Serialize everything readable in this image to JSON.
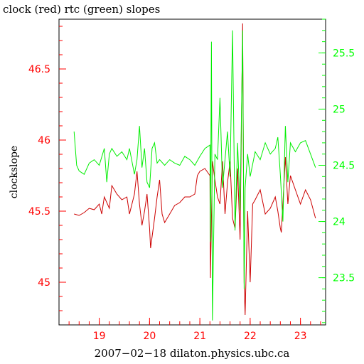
{
  "chart_data": {
    "type": "line",
    "title": "clock (red) rtc (green) slopes",
    "xlabel": "2007−02−18 dilaton.physics.ubc.ca",
    "ylabel": "clockslope",
    "y2label": "",
    "xlim": [
      18.2,
      23.5
    ],
    "ylim": [
      44.7,
      46.85
    ],
    "y2lim": [
      23.08,
      25.8
    ],
    "x_ticks": [
      "19",
      "20",
      "21",
      "22",
      "23"
    ],
    "y_ticks": [
      "45",
      "45.5",
      "46",
      "46.5"
    ],
    "y2_ticks": [
      "23.5",
      "24",
      "24.5",
      "25",
      "25.5"
    ],
    "grid": false,
    "colors": {
      "clock": "#cc0000",
      "rtc": "#00ee00",
      "axis_left": "#ff0000",
      "axis_right": "#00ff00"
    },
    "series": [
      {
        "name": "clock",
        "axis": "left",
        "points": [
          [
            18.5,
            45.48
          ],
          [
            18.6,
            45.47
          ],
          [
            18.7,
            45.49
          ],
          [
            18.8,
            45.52
          ],
          [
            18.9,
            45.51
          ],
          [
            19.0,
            45.55
          ],
          [
            19.05,
            45.48
          ],
          [
            19.1,
            45.6
          ],
          [
            19.2,
            45.52
          ],
          [
            19.25,
            45.68
          ],
          [
            19.35,
            45.62
          ],
          [
            19.45,
            45.58
          ],
          [
            19.55,
            45.6
          ],
          [
            19.6,
            45.48
          ],
          [
            19.7,
            45.62
          ],
          [
            19.75,
            45.78
          ],
          [
            19.8,
            45.55
          ],
          [
            19.85,
            45.4
          ],
          [
            19.9,
            45.5
          ],
          [
            19.95,
            45.62
          ],
          [
            20.0,
            45.38
          ],
          [
            20.02,
            45.24
          ],
          [
            20.1,
            45.45
          ],
          [
            20.15,
            45.6
          ],
          [
            20.2,
            45.72
          ],
          [
            20.25,
            45.48
          ],
          [
            20.3,
            45.42
          ],
          [
            20.4,
            45.48
          ],
          [
            20.5,
            45.54
          ],
          [
            20.6,
            45.56
          ],
          [
            20.7,
            45.6
          ],
          [
            20.8,
            45.6
          ],
          [
            20.9,
            45.62
          ],
          [
            20.95,
            45.75
          ],
          [
            21.0,
            45.78
          ],
          [
            21.1,
            45.8
          ],
          [
            21.2,
            45.75
          ],
          [
            21.21,
            45.03
          ],
          [
            21.25,
            45.85
          ],
          [
            21.3,
            45.72
          ],
          [
            21.35,
            45.6
          ],
          [
            21.4,
            45.55
          ],
          [
            21.45,
            45.85
          ],
          [
            21.5,
            45.48
          ],
          [
            21.55,
            45.7
          ],
          [
            21.6,
            45.85
          ],
          [
            21.65,
            45.45
          ],
          [
            21.7,
            45.38
          ],
          [
            21.75,
            45.8
          ],
          [
            21.8,
            45.3
          ],
          [
            21.85,
            46.82
          ],
          [
            21.88,
            45.0
          ],
          [
            21.9,
            44.77
          ],
          [
            21.95,
            45.5
          ],
          [
            22.0,
            45.0
          ],
          [
            22.05,
            45.55
          ],
          [
            22.1,
            45.58
          ],
          [
            22.2,
            45.65
          ],
          [
            22.3,
            45.48
          ],
          [
            22.4,
            45.52
          ],
          [
            22.5,
            45.6
          ],
          [
            22.55,
            45.5
          ],
          [
            22.6,
            45.38
          ],
          [
            22.62,
            45.35
          ],
          [
            22.7,
            45.88
          ],
          [
            22.75,
            45.55
          ],
          [
            22.8,
            45.75
          ],
          [
            22.9,
            45.65
          ],
          [
            23.0,
            45.55
          ],
          [
            23.1,
            45.65
          ],
          [
            23.2,
            45.58
          ],
          [
            23.3,
            45.45
          ]
        ]
      },
      {
        "name": "rtc",
        "axis": "right",
        "points": [
          [
            18.5,
            24.8
          ],
          [
            18.55,
            24.5
          ],
          [
            18.6,
            24.45
          ],
          [
            18.7,
            24.42
          ],
          [
            18.8,
            24.52
          ],
          [
            18.9,
            24.55
          ],
          [
            19.0,
            24.5
          ],
          [
            19.1,
            24.65
          ],
          [
            19.15,
            24.35
          ],
          [
            19.2,
            24.6
          ],
          [
            19.25,
            24.65
          ],
          [
            19.35,
            24.58
          ],
          [
            19.45,
            24.62
          ],
          [
            19.55,
            24.55
          ],
          [
            19.6,
            24.65
          ],
          [
            19.7,
            24.42
          ],
          [
            19.75,
            24.55
          ],
          [
            19.8,
            24.85
          ],
          [
            19.85,
            24.48
          ],
          [
            19.9,
            24.65
          ],
          [
            19.95,
            24.35
          ],
          [
            20.0,
            24.3
          ],
          [
            20.05,
            24.65
          ],
          [
            20.1,
            24.7
          ],
          [
            20.15,
            24.52
          ],
          [
            20.2,
            24.55
          ],
          [
            20.3,
            24.5
          ],
          [
            20.4,
            24.55
          ],
          [
            20.5,
            24.52
          ],
          [
            20.6,
            24.5
          ],
          [
            20.7,
            24.58
          ],
          [
            20.8,
            24.55
          ],
          [
            20.9,
            24.5
          ],
          [
            21.0,
            24.58
          ],
          [
            21.1,
            24.65
          ],
          [
            21.2,
            24.68
          ],
          [
            21.21,
            23.82
          ],
          [
            21.23,
            25.6
          ],
          [
            21.25,
            23.12
          ],
          [
            21.3,
            24.6
          ],
          [
            21.35,
            24.55
          ],
          [
            21.4,
            25.1
          ],
          [
            21.45,
            24.3
          ],
          [
            21.5,
            24.55
          ],
          [
            21.55,
            24.8
          ],
          [
            21.6,
            24.4
          ],
          [
            21.65,
            25.7
          ],
          [
            21.7,
            23.92
          ],
          [
            21.75,
            24.7
          ],
          [
            21.8,
            24.1
          ],
          [
            21.85,
            25.7
          ],
          [
            21.88,
            23.4
          ],
          [
            21.9,
            24.3
          ],
          [
            21.95,
            24.6
          ],
          [
            22.0,
            24.4
          ],
          [
            22.1,
            24.62
          ],
          [
            22.2,
            24.55
          ],
          [
            22.3,
            24.7
          ],
          [
            22.4,
            24.6
          ],
          [
            22.5,
            24.65
          ],
          [
            22.55,
            24.75
          ],
          [
            22.6,
            24.42
          ],
          [
            22.65,
            24.0
          ],
          [
            22.7,
            24.85
          ],
          [
            22.75,
            24.35
          ],
          [
            22.8,
            24.7
          ],
          [
            22.9,
            24.62
          ],
          [
            23.0,
            24.7
          ],
          [
            23.1,
            24.72
          ],
          [
            23.2,
            24.6
          ],
          [
            23.3,
            24.48
          ]
        ]
      }
    ]
  }
}
